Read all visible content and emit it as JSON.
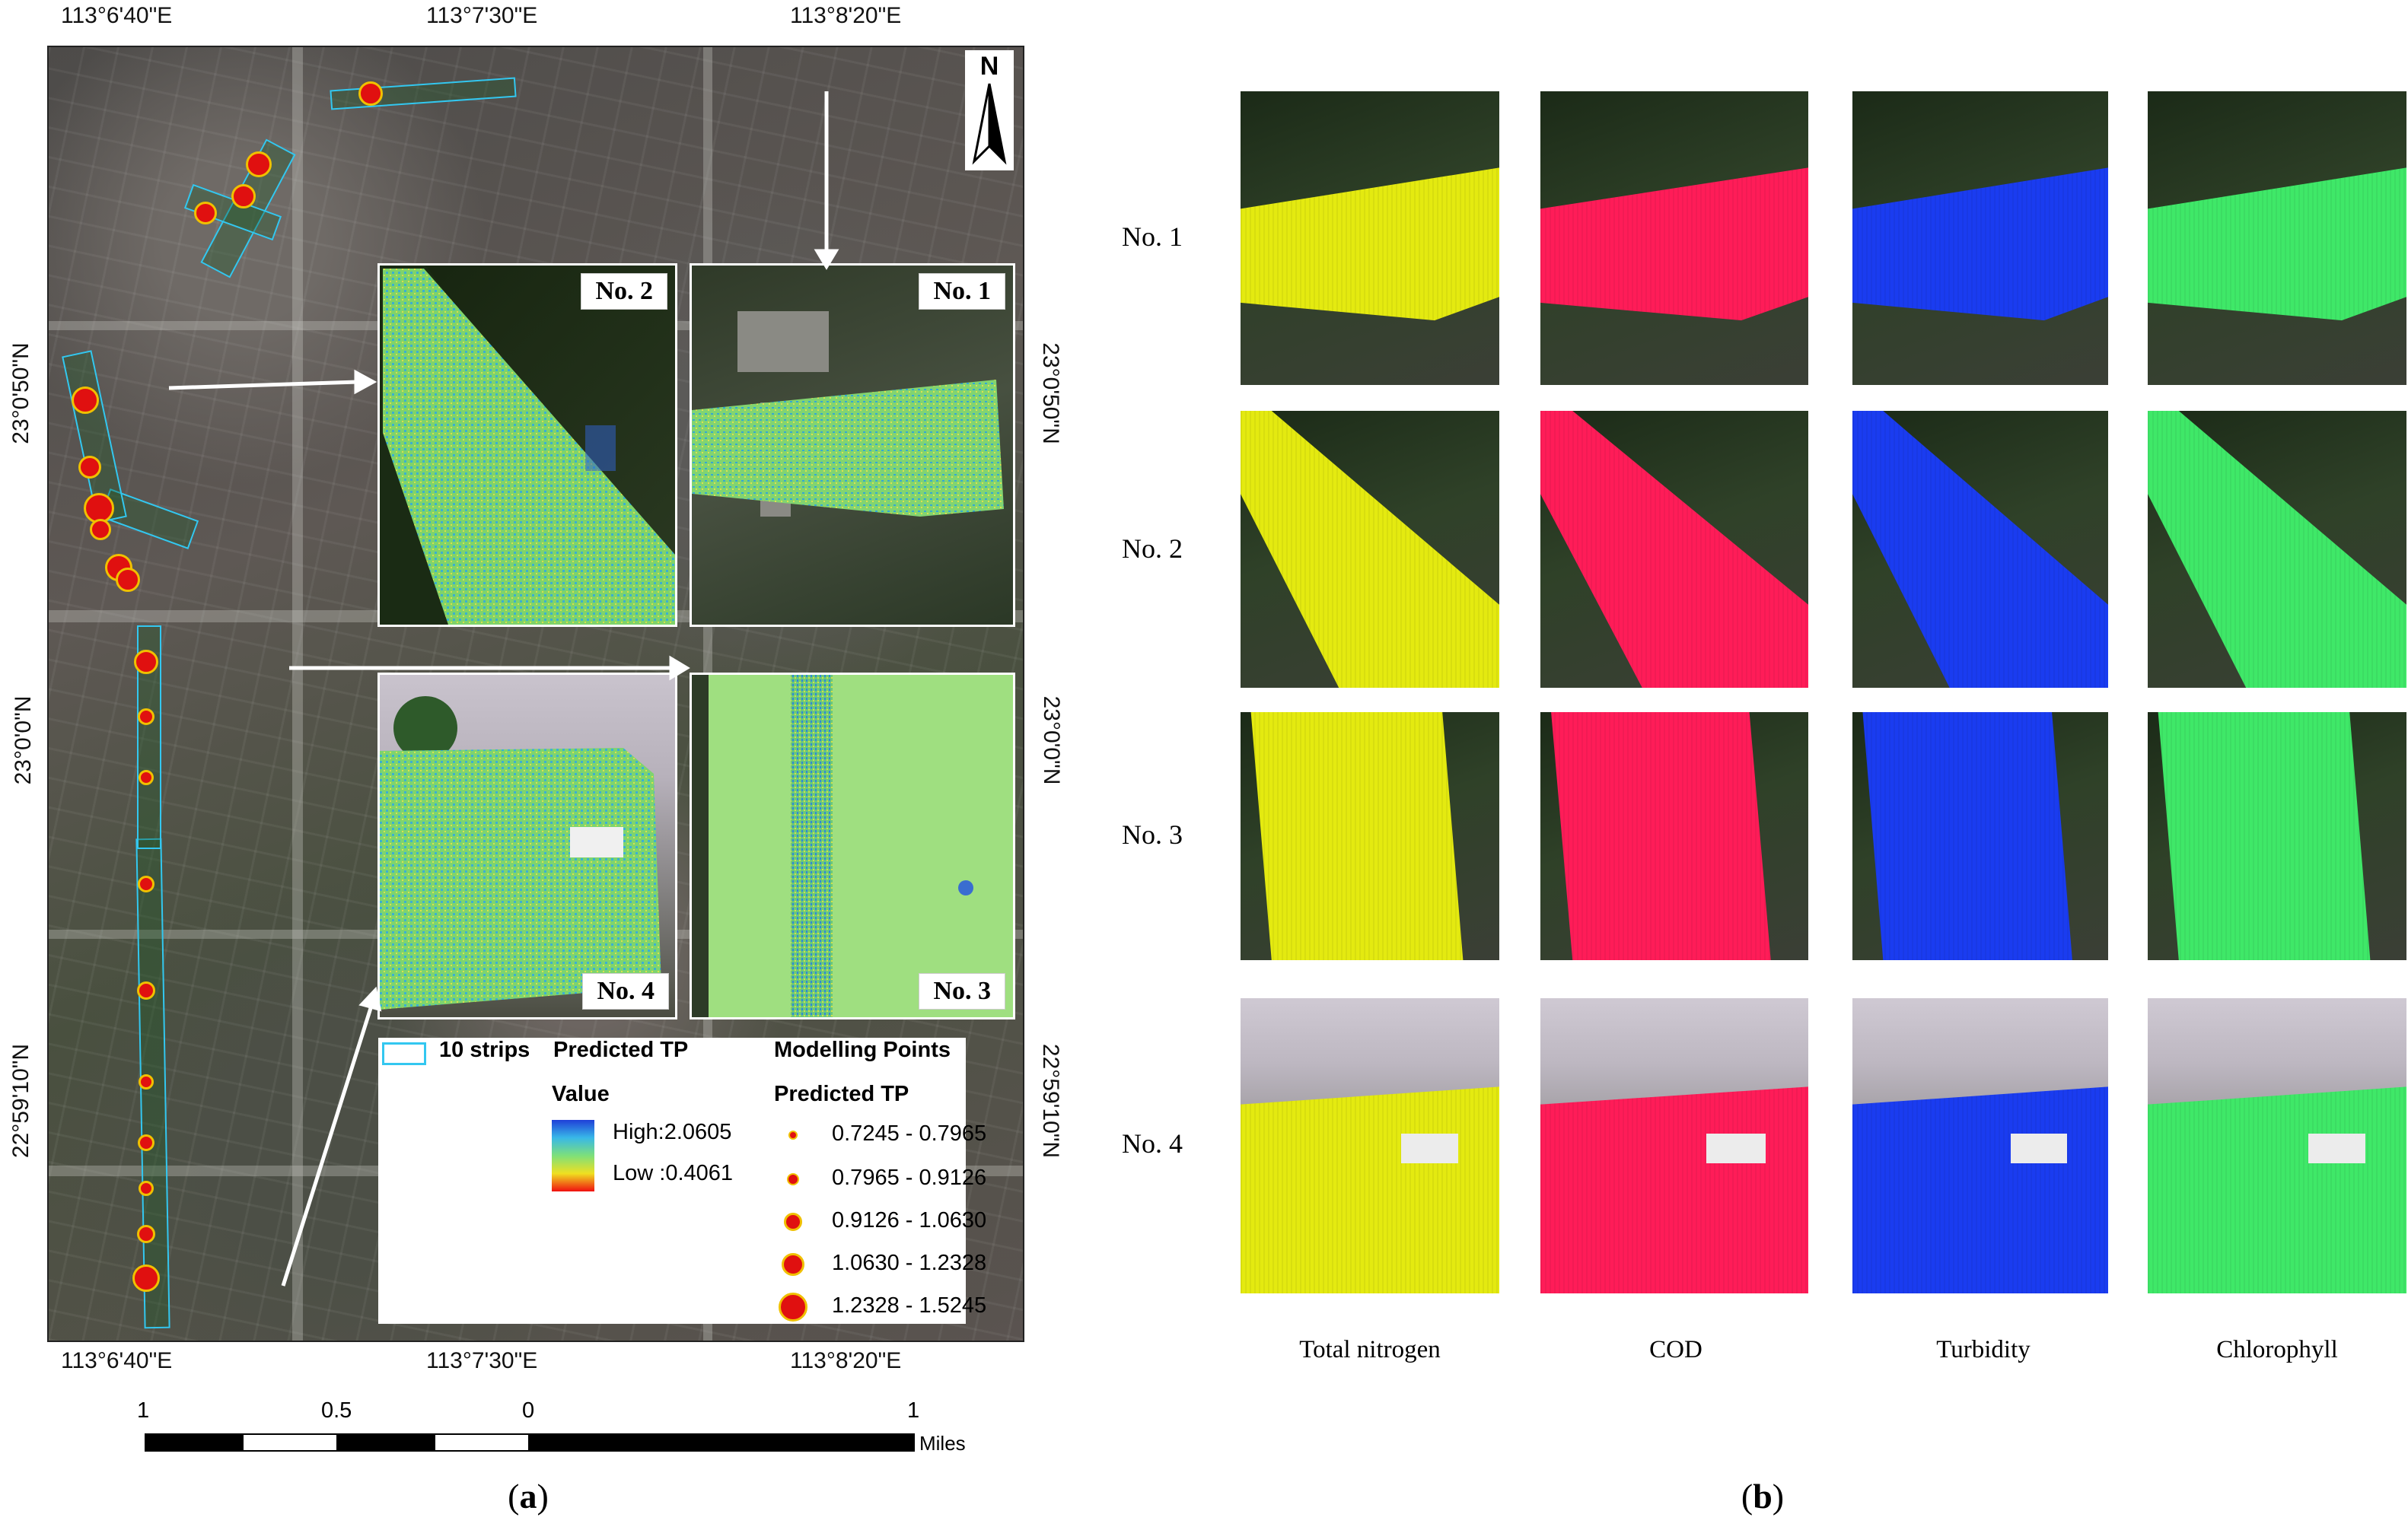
{
  "panel_a": {
    "top_coords": [
      "113°6'40\"E",
      "113°7'30\"E",
      "113°8'20\"E"
    ],
    "bottom_coords": [
      "113°6'40\"E",
      "113°7'30\"E",
      "113°8'20\"E"
    ],
    "left_coords": [
      "23°0'50\"N",
      "23°0'0\"N",
      "22°59'10\"N"
    ],
    "right_coords": [
      "23°0'50\"N",
      "23°0'0\"N",
      "22°59'10\"N"
    ],
    "north_label": "N",
    "insets": {
      "no1": "No. 1",
      "no2": "No. 2",
      "no3": "No. 3",
      "no4": "No. 4"
    },
    "legend": {
      "strips_label": "10 strips",
      "predicted_tp_title": "Predicted TP",
      "value_label": "Value",
      "high_label": "High:2.0605",
      "low_label": "Low :0.4061",
      "modelling_points_title": "Modelling Points",
      "modelling_predicted_tp": "Predicted TP",
      "ranges": [
        "0.7245 - 0.7965",
        "0.7965 - 0.9126",
        "0.9126 - 1.0630",
        "1.0630 - 1.2328",
        "1.2328 - 1.5245"
      ]
    },
    "scale_bar": {
      "labels": [
        "1",
        "0.5",
        "0",
        "1"
      ],
      "unit": "Miles"
    },
    "caption_open": "(",
    "caption_letter": "a",
    "caption_close": ")"
  },
  "panel_b": {
    "rows": [
      "No. 1",
      "No. 2",
      "No. 3",
      "No. 4"
    ],
    "columns": [
      "Total nitrogen",
      "COD",
      "Turbidity",
      "Chlorophyll"
    ],
    "column_colors": [
      "#e4ea10",
      "#ff1c58",
      "#1a3cf0",
      "#3fe868"
    ],
    "caption_open": "(",
    "caption_letter": "b",
    "caption_close": ")"
  },
  "colors": {
    "gradient_high": "#1f3fd8",
    "gradient_low": "#f01010",
    "strip_outline": "#33c7f0",
    "point_fill": "#e01010",
    "point_outline": "#f0c000"
  }
}
